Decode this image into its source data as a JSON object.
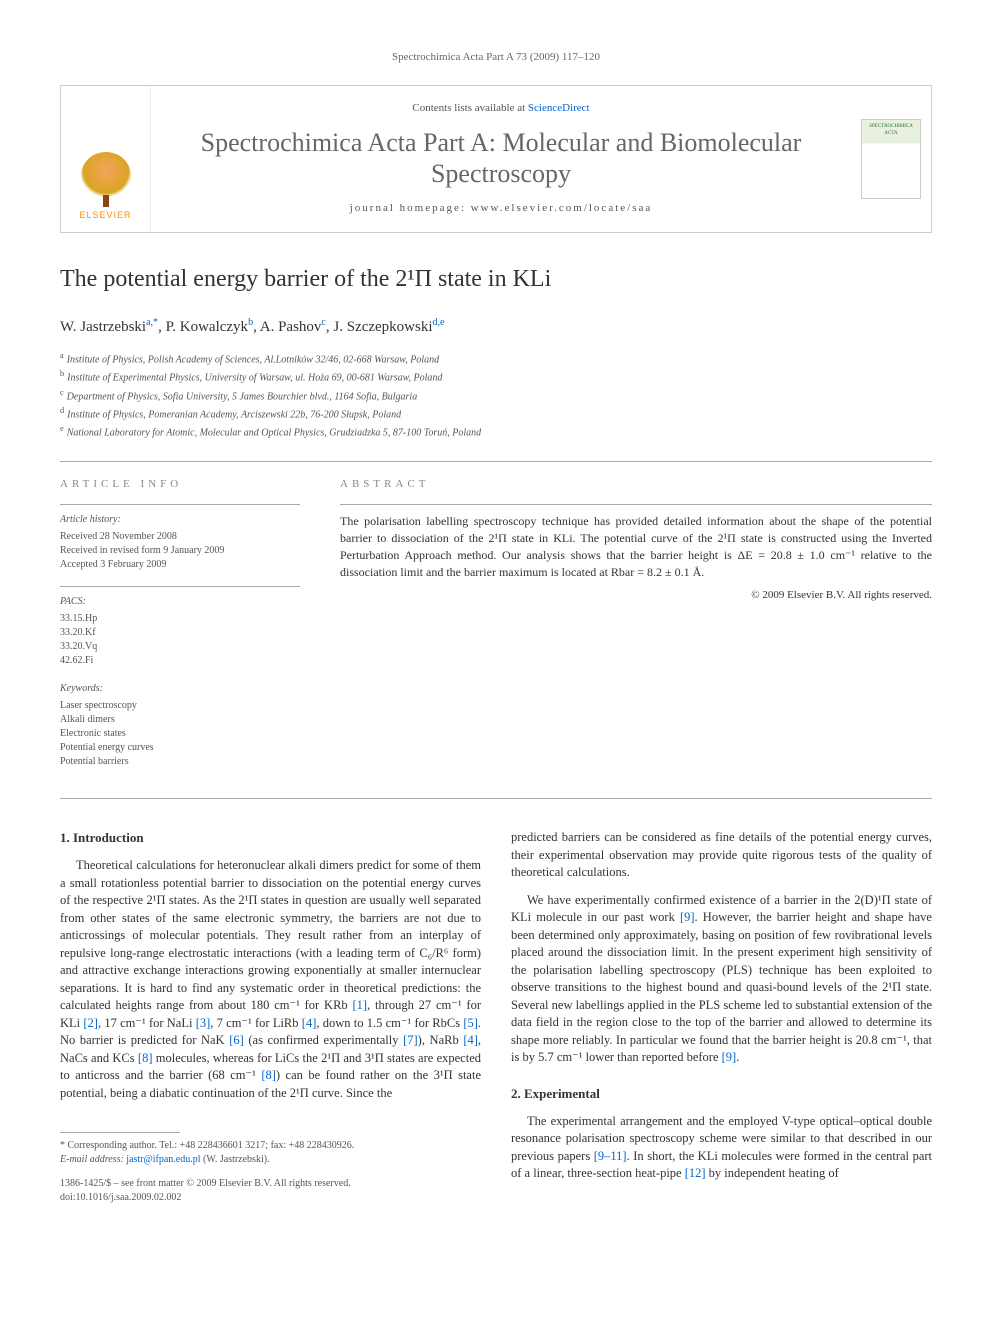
{
  "running_header": "Spectrochimica Acta Part A 73 (2009) 117–120",
  "masthead": {
    "publisher": "ELSEVIER",
    "contents_prefix": "Contents lists available at ",
    "contents_link": "ScienceDirect",
    "journal_name": "Spectrochimica Acta Part A: Molecular and Biomolecular Spectroscopy",
    "homepage_label": "journal homepage: ",
    "homepage_url": "www.elsevier.com/locate/saa",
    "cover_text": "SPECTROCHIMICA ACTA"
  },
  "title": "The potential energy barrier of the 2¹Π state in KLi",
  "authors_html": "W. Jastrzebski",
  "authors": [
    {
      "name": "W. Jastrzebski",
      "marks": "a,*"
    },
    {
      "name": "P. Kowalczyk",
      "marks": "b"
    },
    {
      "name": "A. Pashov",
      "marks": "c"
    },
    {
      "name": "J. Szczepkowski",
      "marks": "d,e"
    }
  ],
  "affiliations": [
    {
      "mark": "a",
      "text": "Institute of Physics, Polish Academy of Sciences, Al.Lotników 32/46, 02-668 Warsaw, Poland"
    },
    {
      "mark": "b",
      "text": "Institute of Experimental Physics, University of Warsaw, ul. Hoża 69, 00-681 Warsaw, Poland"
    },
    {
      "mark": "c",
      "text": "Department of Physics, Sofia University, 5 James Bourchier blvd., 1164 Sofia, Bulgaria"
    },
    {
      "mark": "d",
      "text": "Institute of Physics, Pomeranian Academy, Arciszewski 22b, 76-200 Słupsk, Poland"
    },
    {
      "mark": "e",
      "text": "National Laboratory for Atomic, Molecular and Optical Physics, Grudziadzka 5, 87-100 Toruń, Poland"
    }
  ],
  "article_info": {
    "heading": "article info",
    "history_label": "Article history:",
    "history": [
      "Received 28 November 2008",
      "Received in revised form 9 January 2009",
      "Accepted 3 February 2009"
    ],
    "pacs_label": "PACS:",
    "pacs": [
      "33.15.Hp",
      "33.20.Kf",
      "33.20.Vq",
      "42.62.Fi"
    ],
    "keywords_label": "Keywords:",
    "keywords": [
      "Laser spectroscopy",
      "Alkali dimers",
      "Electronic states",
      "Potential energy curves",
      "Potential barriers"
    ]
  },
  "abstract": {
    "heading": "abstract",
    "text": "The polarisation labelling spectroscopy technique has provided detailed information about the shape of the potential barrier to dissociation of the 2¹Π state in KLi. The potential curve of the 2¹Π state is constructed using the Inverted Perturbation Approach method. Our analysis shows that the barrier height is ΔE = 20.8 ± 1.0 cm⁻¹ relative to the dissociation limit and the barrier maximum is located at Rbar = 8.2 ± 0.1 Å.",
    "copyright": "© 2009 Elsevier B.V. All rights reserved."
  },
  "sections": {
    "intro_heading": "1. Introduction",
    "intro_p1": "Theoretical calculations for heteronuclear alkali dimers predict for some of them a small rotationless potential barrier to dissociation on the potential energy curves of the respective 2¹Π states. As the 2¹Π states in question are usually well separated from other states of the same electronic symmetry, the barriers are not due to anticrossings of molecular potentials. They result rather from an interplay of repulsive long-range electrostatic interactions (with a leading term of C₆/R⁶ form) and attractive exchange interactions growing exponentially at smaller internuclear separations. It is hard to find any systematic order in theoretical predictions: the calculated heights range from about 180 cm⁻¹ for KRb [1], through 27 cm⁻¹ for KLi [2], 17 cm⁻¹ for NaLi [3], 7 cm⁻¹ for LiRb [4], down to 1.5 cm⁻¹ for RbCs [5]. No barrier is predicted for NaK [6] (as confirmed experimentally [7]), NaRb [4], NaCs and KCs [8] molecules, whereas for LiCs the 2¹Π and 3¹Π states are expected to anticross and the barrier (68 cm⁻¹ [8]) can be found rather on the 3¹Π state potential, being a diabatic continuation of the 2¹Π curve. Since the",
    "intro_p2": "predicted barriers can be considered as fine details of the potential energy curves, their experimental observation may provide quite rigorous tests of the quality of theoretical calculations.",
    "intro_p3": "We have experimentally confirmed existence of a barrier in the 2(D)¹Π state of KLi molecule in our past work [9]. However, the barrier height and shape have been determined only approximately, basing on position of few rovibrational levels placed around the dissociation limit. In the present experiment high sensitivity of the polarisation labelling spectroscopy (PLS) technique has been exploited to observe transitions to the highest bound and quasi-bound levels of the 2¹Π state. Several new labellings applied in the PLS scheme led to substantial extension of the data field in the region close to the top of the barrier and allowed to determine its shape more reliably. In particular we found that the barrier height is 20.8 cm⁻¹, that is by 5.7 cm⁻¹ lower than reported before [9].",
    "exp_heading": "2. Experimental",
    "exp_p1": "The experimental arrangement and the employed V-type optical–optical double resonance polarisation spectroscopy scheme were similar to that described in our previous papers [9–11]. In short, the KLi molecules were formed in the central part of a linear, three-section heat-pipe [12] by independent heating of"
  },
  "footer": {
    "corr_label": "* Corresponding author. Tel.: +48 228436601 3217; fax: +48 228430926.",
    "email_label": "E-mail address: ",
    "email": "jastr@ifpan.edu.pl",
    "email_suffix": " (W. Jastrzebski).",
    "issn_line": "1386-1425/$ – see front matter © 2009 Elsevier B.V. All rights reserved.",
    "doi": "doi:10.1016/j.saa.2009.02.002"
  },
  "refs": [
    "[1]",
    "[2]",
    "[3]",
    "[4]",
    "[5]",
    "[6]",
    "[7]",
    "[8]",
    "[9]",
    "[9–11]",
    "[12]"
  ],
  "colors": {
    "link": "#0066cc",
    "text": "#333333",
    "muted": "#666666",
    "rule": "#aaaaaa"
  }
}
